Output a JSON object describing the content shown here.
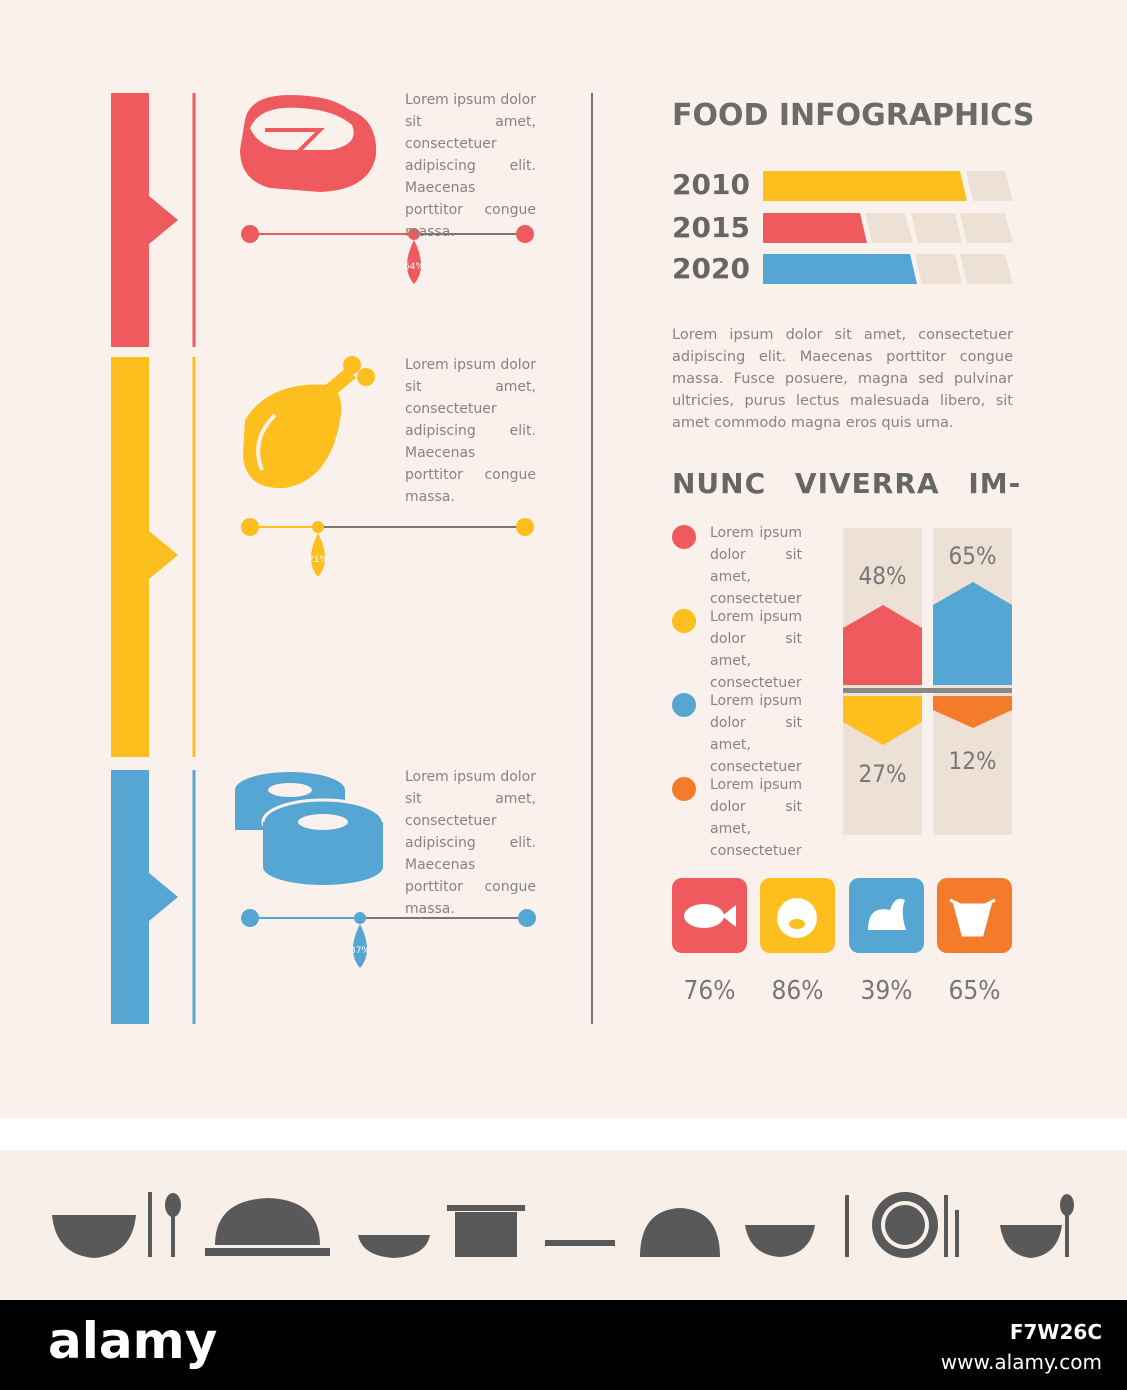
{
  "title": "FOOD INFOGRAPHICS",
  "years": [
    "2010",
    "2015",
    "2020"
  ],
  "intro": "Lorem ipsum dolor sit amet, consectetuer adipiscing elit. Maecenas porttitor congue massa. Fusce posuere, magna sed pulvinar ultricies, purus lectus malesuada libero, sit amet commodo magna eros quis urna.",
  "subtitle": "NUNC VIVERRA IM-",
  "timeline": [
    {
      "text": "Lorem ipsum dolor sit amet, consectetuer adipiscing elit. Maecenas porttitor congue massa.",
      "percent": "64%"
    },
    {
      "text": "Lorem ipsum dolor sit amet, consectetuer adipiscing elit. Maecenas porttitor congue massa.",
      "percent": "21%"
    },
    {
      "text": "Lorem ipsum dolor sit amet, consectetuer adipiscing elit. Maecenas porttitor congue massa.",
      "percent": "37%"
    }
  ],
  "legend": [
    "Lorem ipsum dolor sit amet, consectetuer",
    "Lorem ipsum dolor sit amet, consectetuer",
    "Lorem ipsum dolor sit amet, consectetuer",
    "Lorem ipsum dolor sit amet, consectetuer"
  ],
  "arrows": [
    "48%",
    "65%",
    "27%",
    "12%"
  ],
  "icons": [
    "76%",
    "86%",
    "39%",
    "65%"
  ],
  "footer": {
    "brand": "alamy",
    "id": "F7W26C",
    "url": "www.alamy.com"
  }
}
